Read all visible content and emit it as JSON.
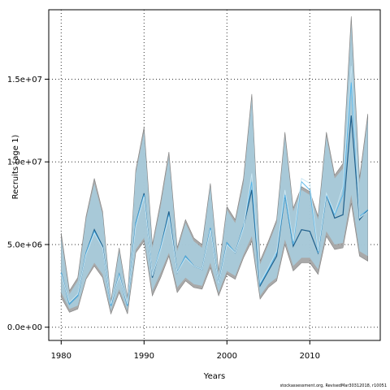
{
  "chart_data": {
    "type": "area",
    "xlabel": "Years",
    "ylabel": "Recruits (age 1)",
    "xlim": [
      1978.5,
      2018.5
    ],
    "ylim": [
      -800000,
      19200000
    ],
    "grid": true,
    "x_ticks": [
      {
        "value": 1980,
        "label": "1980"
      },
      {
        "value": 1990,
        "label": "1990"
      },
      {
        "value": 2000,
        "label": "2000"
      },
      {
        "value": 2010,
        "label": "2010"
      }
    ],
    "y_ticks": [
      {
        "value": 0,
        "label": "0.0e+00"
      },
      {
        "value": 5000000,
        "label": "5.0e+06"
      },
      {
        "value": 10000000,
        "label": "1.0e+07"
      },
      {
        "value": 15000000,
        "label": "1.5e+07"
      }
    ],
    "x": [
      1980,
      1981,
      1982,
      1983,
      1984,
      1985,
      1986,
      1987,
      1988,
      1989,
      1990,
      1991,
      1992,
      1993,
      1994,
      1995,
      1996,
      1997,
      1998,
      1999,
      2000,
      2001,
      2002,
      2003,
      2004,
      2005,
      2006,
      2007,
      2008,
      2009,
      2010,
      2011,
      2012,
      2013,
      2014,
      2015,
      2016,
      2017
    ],
    "series": [
      {
        "role": "band_outer",
        "color": "#9a9a9a",
        "lower": [
          1800000,
          900000,
          1100000,
          2900000,
          3700000,
          3000000,
          800000,
          2100000,
          800000,
          4500000,
          5200000,
          1900000,
          3000000,
          4300000,
          2100000,
          2800000,
          2400000,
          2300000,
          3600000,
          1900000,
          3200000,
          2900000,
          4200000,
          5200000,
          1700000,
          2400000,
          2800000,
          5000000,
          3400000,
          3900000,
          3900000,
          3200000,
          5500000,
          4700000,
          4800000,
          7500000,
          4300000,
          4000000
        ],
        "upper": [
          5700000,
          2200000,
          3000000,
          6700000,
          9000000,
          7000000,
          1600000,
          4800000,
          1800000,
          9500000,
          12100000,
          5000000,
          7600000,
          10600000,
          4800000,
          6500000,
          5400000,
          5000000,
          8700000,
          3400000,
          7300000,
          6500000,
          9000000,
          14100000,
          4000000,
          5200000,
          6500000,
          11800000,
          7200000,
          8500000,
          8200000,
          6700000,
          11800000,
          9200000,
          9900000,
          18800000,
          9000000,
          12900000
        ]
      },
      {
        "role": "band_inner",
        "color": "#a8cfe0",
        "lower": [
          2100000,
          1100000,
          1300000,
          3000000,
          3900000,
          3200000,
          1000000,
          2300000,
          1000000,
          4700000,
          5400000,
          2200000,
          3300000,
          4500000,
          2400000,
          3000000,
          2600000,
          2500000,
          3900000,
          2100000,
          3400000,
          3100000,
          4400000,
          5500000,
          1900000,
          2600000,
          3000000,
          5300000,
          3700000,
          4200000,
          4200000,
          3500000,
          5800000,
          5000000,
          5100000,
          8000000,
          4600000,
          4300000
        ],
        "upper": [
          5400000,
          2000000,
          2800000,
          6500000,
          8700000,
          6800000,
          1500000,
          4600000,
          1700000,
          9300000,
          11800000,
          4800000,
          7300000,
          10300000,
          4600000,
          6300000,
          5200000,
          4800000,
          8500000,
          3200000,
          7100000,
          6300000,
          8700000,
          13800000,
          3800000,
          5000000,
          6300000,
          11500000,
          7000000,
          8300000,
          8000000,
          6500000,
          11500000,
          9000000,
          9600000,
          18300000,
          8700000,
          12600000
        ]
      },
      {
        "role": "median",
        "color": "#1f5f8b",
        "values": [
          3300000,
          1400000,
          1900000,
          4500000,
          5900000,
          4900000,
          1300000,
          3200000,
          1300000,
          6300000,
          8100000,
          3000000,
          4800000,
          7000000,
          3300000,
          4300000,
          3700000,
          3500000,
          6000000,
          2600000,
          5100000,
          4500000,
          6100000,
          8300000,
          2500000,
          3400000,
          4300000,
          8000000,
          4900000,
          5900000,
          5800000,
          4500000,
          8000000,
          6600000,
          6800000,
          12800000,
          6500000,
          7100000
        ]
      },
      {
        "role": "mean",
        "color": "#4fb3ea",
        "values": [
          3300000,
          1400000,
          1900000,
          4500000,
          5800000,
          4800000,
          1300000,
          3200000,
          1300000,
          6300000,
          8000000,
          3100000,
          4800000,
          6800000,
          3300000,
          4300000,
          3700000,
          3500000,
          6000000,
          2600000,
          5100000,
          4500000,
          6100000,
          8800000,
          2600000,
          3500000,
          4500000,
          8000000,
          5000000,
          8800000,
          8300000,
          4500000,
          8000000,
          6800000,
          8000000,
          14800000,
          6700000,
          7100000
        ]
      },
      {
        "role": "line_light",
        "color": "#c9e6f3",
        "values": [
          3200000,
          1500000,
          2000000,
          4400000,
          5700000,
          4800000,
          1400000,
          3100000,
          1400000,
          6100000,
          7900000,
          3100000,
          4700000,
          6700000,
          3300000,
          4200000,
          3700000,
          3500000,
          5900000,
          2600000,
          5000000,
          4500000,
          6000000,
          9300000,
          2700000,
          3600000,
          4600000,
          8300000,
          5200000,
          9000000,
          8700000,
          4600000,
          8100000,
          6900000,
          8500000,
          15800000,
          6600000,
          7000000
        ]
      }
    ]
  },
  "footer": "stockassessment.org, RevisedMar30312018, r10051"
}
